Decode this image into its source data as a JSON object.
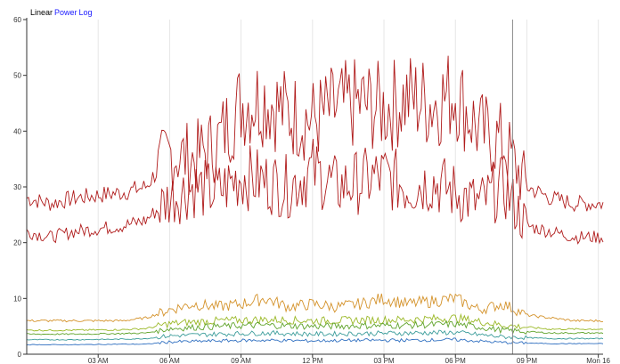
{
  "scale_options": [
    {
      "label": "Linear",
      "color": "#000000"
    },
    {
      "label": "Power",
      "color": "#1a1aff"
    },
    {
      "label": "Log",
      "color": "#1a1aff"
    }
  ],
  "chart_data": {
    "type": "line",
    "title": "",
    "xlabel": "",
    "ylabel": "",
    "ylim": [
      0,
      60
    ],
    "y_ticks": [
      0,
      10,
      20,
      30,
      40,
      50,
      60
    ],
    "x_ticks": [
      "03 AM",
      "06 AM",
      "09 AM",
      "12 PM",
      "03 PM",
      "06 PM",
      "09 PM",
      "Mon 16"
    ],
    "x_range_hours": [
      0,
      24.2
    ],
    "x_tick_hours": [
      3,
      6,
      9,
      12,
      15,
      18,
      21,
      24
    ],
    "grid": true,
    "cursor_hour": 20.4,
    "series": [
      {
        "color": "#b01c1c",
        "x": [
          0,
          1,
          2,
          3,
          4,
          5,
          6,
          7,
          8,
          9,
          10,
          11,
          12,
          13,
          14,
          15,
          16,
          17,
          18,
          19,
          20,
          21,
          22,
          23,
          24.2
        ],
        "values": [
          28,
          27,
          28,
          28.5,
          29,
          30,
          36,
          35,
          38,
          45,
          46,
          43,
          42,
          44,
          45,
          44,
          46,
          45,
          47,
          40,
          38,
          30,
          28,
          27,
          27
        ]
      },
      {
        "color": "#b01c1c",
        "x": [
          0,
          1,
          2,
          3,
          4,
          5,
          6,
          7,
          8,
          9,
          10,
          11,
          12,
          13,
          14,
          15,
          16,
          17,
          18,
          19,
          20,
          21,
          22,
          23,
          24.2
        ],
        "values": [
          22,
          21,
          22,
          22.5,
          23,
          24,
          28,
          30,
          29,
          32,
          31,
          30,
          33,
          30,
          31,
          32,
          30,
          31,
          29,
          27,
          30,
          23,
          22,
          21,
          21
        ]
      },
      {
        "color": "#d4922a",
        "x": [
          0,
          2,
          4,
          5,
          6,
          7,
          8,
          9,
          10,
          11,
          12,
          13,
          14,
          15,
          16,
          17,
          18,
          19,
          20,
          21,
          22,
          23,
          24.2
        ],
        "values": [
          6,
          6,
          6,
          6.5,
          8,
          9,
          8.5,
          9,
          10,
          8.5,
          9,
          8.5,
          9,
          10,
          9,
          9.5,
          10,
          8,
          9,
          7,
          6.5,
          6,
          6
        ]
      },
      {
        "color": "#9ab825",
        "x": [
          0,
          2,
          4,
          5,
          6,
          8,
          10,
          12,
          14,
          16,
          18,
          20,
          22,
          24.2
        ],
        "values": [
          4.3,
          4.3,
          4.4,
          4.6,
          5.5,
          6,
          6.2,
          6,
          6.1,
          6.2,
          6.5,
          5.2,
          4.5,
          4.5
        ]
      },
      {
        "color": "#5fa32a",
        "x": [
          0,
          2,
          4,
          5,
          6,
          8,
          10,
          12,
          14,
          16,
          18,
          20,
          22,
          24.2
        ],
        "values": [
          3.6,
          3.6,
          3.7,
          3.8,
          4.6,
          5,
          5.2,
          5,
          5.1,
          5.2,
          5.4,
          4.3,
          3.8,
          3.8
        ]
      },
      {
        "color": "#3c9d9b",
        "x": [
          0,
          2,
          4,
          5,
          6,
          8,
          10,
          12,
          14,
          16,
          18,
          20,
          22,
          24.2
        ],
        "values": [
          2.6,
          2.6,
          2.7,
          2.8,
          3.3,
          3.6,
          3.8,
          3.6,
          3.7,
          3.8,
          3.9,
          3.1,
          2.8,
          2.8
        ]
      },
      {
        "color": "#2f6fc0",
        "x": [
          0,
          2,
          4,
          5,
          6,
          8,
          10,
          12,
          14,
          16,
          18,
          20,
          22,
          24.2
        ],
        "values": [
          1.7,
          1.7,
          1.8,
          1.8,
          2.2,
          2.4,
          2.5,
          2.4,
          2.5,
          2.5,
          2.6,
          2.1,
          1.9,
          1.9
        ]
      }
    ]
  }
}
